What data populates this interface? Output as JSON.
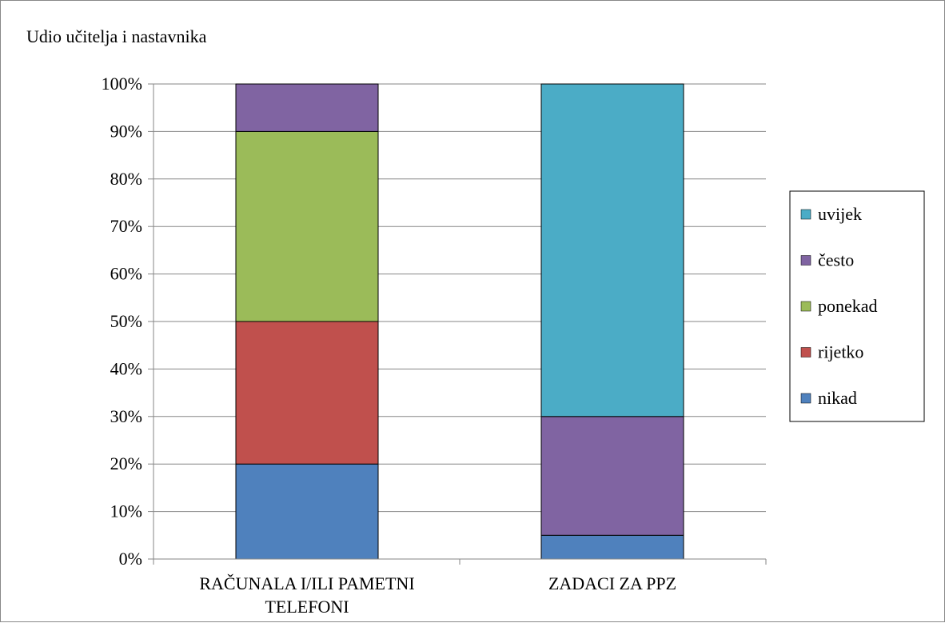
{
  "chart_data": {
    "type": "bar",
    "stacked": true,
    "percent_axis": true,
    "ylabel": "Udio učitelja i nastavnika",
    "categories": [
      "RAČUNALA I/ILI PAMETNI TELEFONI",
      "ZADACI ZA PPZ"
    ],
    "category_lines": [
      [
        "RAČUNALA I/ILI PAMETNI",
        "TELEFONI"
      ],
      [
        "ZADACI ZA PPZ"
      ]
    ],
    "ylim": [
      0,
      100
    ],
    "yticks": [
      "0%",
      "10%",
      "20%",
      "30%",
      "40%",
      "50%",
      "60%",
      "70%",
      "80%",
      "90%",
      "100%"
    ],
    "grid": true,
    "legend_position": "right",
    "series": [
      {
        "name": "nikad",
        "color": "#4F81BD",
        "values": [
          20,
          5
        ]
      },
      {
        "name": "rijetko",
        "color": "#C0504D",
        "values": [
          30,
          0
        ]
      },
      {
        "name": "ponekad",
        "color": "#9BBB59",
        "values": [
          40,
          0
        ]
      },
      {
        "name": "često",
        "color": "#8064A2",
        "values": [
          10,
          25
        ]
      },
      {
        "name": "uvijek",
        "color": "#4BACC6",
        "values": [
          0,
          70
        ]
      }
    ]
  }
}
